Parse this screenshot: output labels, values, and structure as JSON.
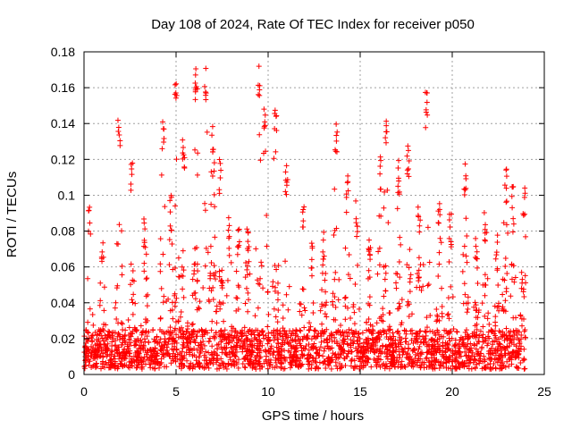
{
  "chart_data": {
    "type": "scatter",
    "title": "Day 108 of 2024, Rate Of TEC Index for receiver p050",
    "xlabel": "GPS time / hours",
    "ylabel": "ROTI / TECUs",
    "xlim": [
      0,
      25
    ],
    "ylim": [
      0,
      0.18
    ],
    "xticks": [
      0,
      5,
      10,
      15,
      20,
      25
    ],
    "xtick_labels": [
      "0",
      "5",
      "10",
      "15",
      "20",
      "25"
    ],
    "yticks": [
      0,
      0.02,
      0.04,
      0.06,
      0.08,
      0.1,
      0.12,
      0.14,
      0.16,
      0.18
    ],
    "ytick_labels": [
      "0",
      "0.02",
      "0.04",
      "0.06",
      "0.08",
      "0.1",
      "0.12",
      "0.14",
      "0.16",
      "0.18"
    ],
    "grid": true,
    "marker": "+",
    "marker_color": "#ff0000",
    "x_range_of_data": [
      0,
      24
    ],
    "series": [
      {
        "values_note": "",
        "peaks": [
          {
            "x": 0.3,
            "y": 0.094
          },
          {
            "x": 1.0,
            "y": 0.075
          },
          {
            "x": 1.9,
            "y": 0.142
          },
          {
            "x": 2.6,
            "y": 0.118
          },
          {
            "x": 3.3,
            "y": 0.09
          },
          {
            "x": 4.3,
            "y": 0.141
          },
          {
            "x": 4.7,
            "y": 0.1
          },
          {
            "x": 5.0,
            "y": 0.167
          },
          {
            "x": 5.4,
            "y": 0.133
          },
          {
            "x": 6.1,
            "y": 0.171
          },
          {
            "x": 6.6,
            "y": 0.172
          },
          {
            "x": 7.0,
            "y": 0.142
          },
          {
            "x": 7.4,
            "y": 0.121
          },
          {
            "x": 7.9,
            "y": 0.09
          },
          {
            "x": 8.4,
            "y": 0.088
          },
          {
            "x": 8.9,
            "y": 0.088
          },
          {
            "x": 9.5,
            "y": 0.175
          },
          {
            "x": 9.8,
            "y": 0.15
          },
          {
            "x": 10.4,
            "y": 0.154
          },
          {
            "x": 11.0,
            "y": 0.12
          },
          {
            "x": 11.9,
            "y": 0.101
          },
          {
            "x": 12.4,
            "y": 0.079
          },
          {
            "x": 13.0,
            "y": 0.083
          },
          {
            "x": 13.7,
            "y": 0.14
          },
          {
            "x": 14.3,
            "y": 0.112
          },
          {
            "x": 14.8,
            "y": 0.097
          },
          {
            "x": 15.5,
            "y": 0.073
          },
          {
            "x": 16.1,
            "y": 0.123
          },
          {
            "x": 16.4,
            "y": 0.146
          },
          {
            "x": 17.1,
            "y": 0.117
          },
          {
            "x": 17.6,
            "y": 0.13
          },
          {
            "x": 18.2,
            "y": 0.097
          },
          {
            "x": 18.6,
            "y": 0.16
          },
          {
            "x": 19.3,
            "y": 0.1
          },
          {
            "x": 19.9,
            "y": 0.09
          },
          {
            "x": 20.7,
            "y": 0.12
          },
          {
            "x": 21.3,
            "y": 0.079
          },
          {
            "x": 21.8,
            "y": 0.093
          },
          {
            "x": 22.4,
            "y": 0.079
          },
          {
            "x": 22.9,
            "y": 0.115
          },
          {
            "x": 23.3,
            "y": 0.105
          },
          {
            "x": 23.9,
            "y": 0.104
          }
        ]
      }
    ]
  }
}
